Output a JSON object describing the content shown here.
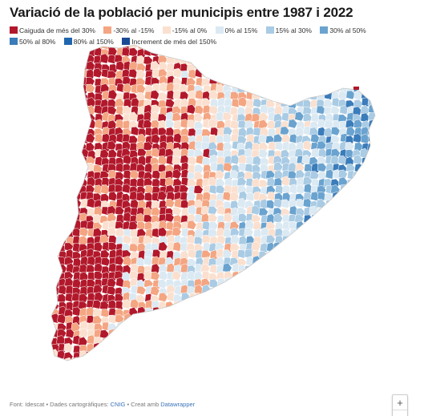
{
  "title": "Variació de la població per municipis entre 1987 i 2022",
  "legend": [
    {
      "label": "Caiguda de més del 30%",
      "color": "#b2182b"
    },
    {
      "label": "-30% al -15%",
      "color": "#f4a582"
    },
    {
      "label": "-15% al 0%",
      "color": "#fbe0cf"
    },
    {
      "label": "0% al 15%",
      "color": "#dbe9f3"
    },
    {
      "label": "15% al 30%",
      "color": "#a9cbe4"
    },
    {
      "label": "30% al 50%",
      "color": "#6aa3cf"
    },
    {
      "label": "50% al 80%",
      "color": "#3b7cba"
    },
    {
      "label": "80% al 150%",
      "color": "#2066ae"
    },
    {
      "label": "Increment de més del 150%",
      "color": "#1a4a94"
    }
  ],
  "zoom": {
    "in_label": "+",
    "out_label": "−"
  },
  "footer": {
    "source_text": "Font: Idescat • Dades cartogràfiques: ",
    "cnig_link": "CNIG",
    "made_with_text": " • Creat amb ",
    "datawrapper_link": "Datawrapper"
  }
}
